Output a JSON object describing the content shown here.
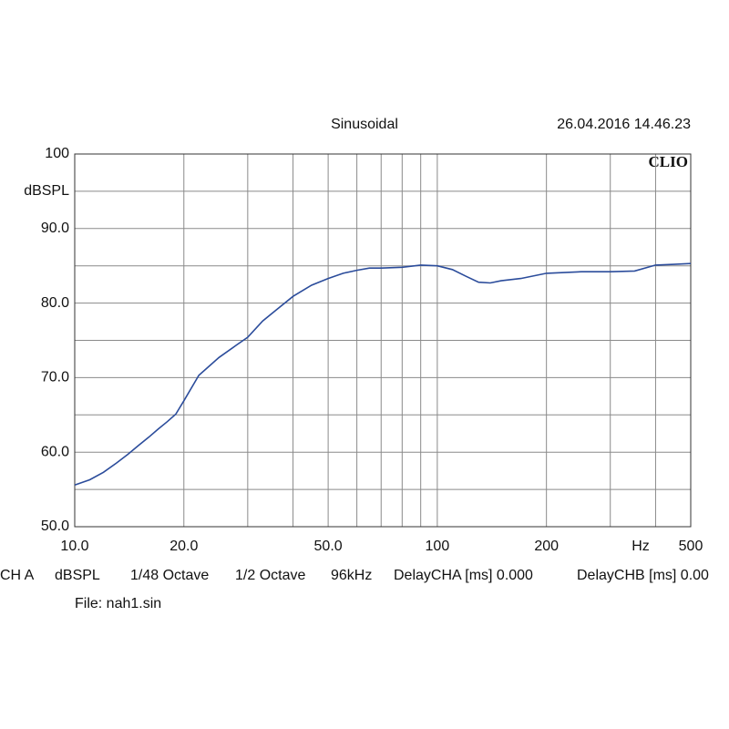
{
  "chart_data": {
    "type": "line",
    "title": "Sinusoidal",
    "subtitle": "26.04.2016 14.46.23",
    "brand": "CLIO",
    "y_label": "dBSPL",
    "x_label": "Hz",
    "x_scale": "log",
    "grid": true,
    "xlim": [
      10,
      500
    ],
    "ylim": [
      50,
      100
    ],
    "xticks": [
      {
        "value": 10,
        "label": "10.0"
      },
      {
        "value": 20,
        "label": "20.0"
      },
      {
        "value": 50,
        "label": "50.0"
      },
      100,
      200,
      500
    ],
    "x_minor_ticks": [
      30,
      40,
      60,
      70,
      80,
      90,
      300,
      400
    ],
    "yticks": [
      {
        "value": 50,
        "label": "50.0"
      },
      {
        "value": 60,
        "label": "60.0"
      },
      {
        "value": 70,
        "label": "70.0"
      },
      {
        "value": 80,
        "label": "80.0"
      },
      {
        "value": 90,
        "label": "90.0"
      },
      100
    ],
    "y_minor_ticks": [
      55,
      65,
      75,
      85,
      95
    ],
    "series": [
      {
        "color": "#2b4c9b",
        "x": [
          10,
          11,
          12,
          13,
          14,
          15,
          16,
          17,
          18,
          19,
          20,
          22,
          25,
          28,
          30,
          33,
          36,
          40,
          45,
          50,
          55,
          60,
          65,
          70,
          80,
          90,
          100,
          110,
          120,
          130,
          140,
          150,
          170,
          200,
          250,
          300,
          350,
          400,
          450,
          500
        ],
        "values": [
          55.6,
          56.3,
          57.3,
          58.5,
          59.7,
          60.9,
          62.0,
          63.1,
          64.1,
          65.1,
          66.9,
          70.3,
          72.7,
          74.4,
          75.4,
          77.6,
          79.1,
          80.9,
          82.4,
          83.3,
          84.0,
          84.4,
          84.7,
          84.7,
          84.8,
          85.1,
          85.0,
          84.5,
          83.6,
          82.8,
          82.7,
          83.0,
          83.3,
          84.0,
          84.2,
          84.2,
          84.3,
          85.1,
          85.2,
          85.3
        ]
      }
    ],
    "info": [
      "CH A",
      "dBSPL",
      "1/48 Octave",
      "1/2 Octave",
      "96kHz",
      "DelayCHA [ms] 0.000",
      "DelayCHB [ms] 0.00"
    ],
    "file": "File: nah1.sin"
  }
}
